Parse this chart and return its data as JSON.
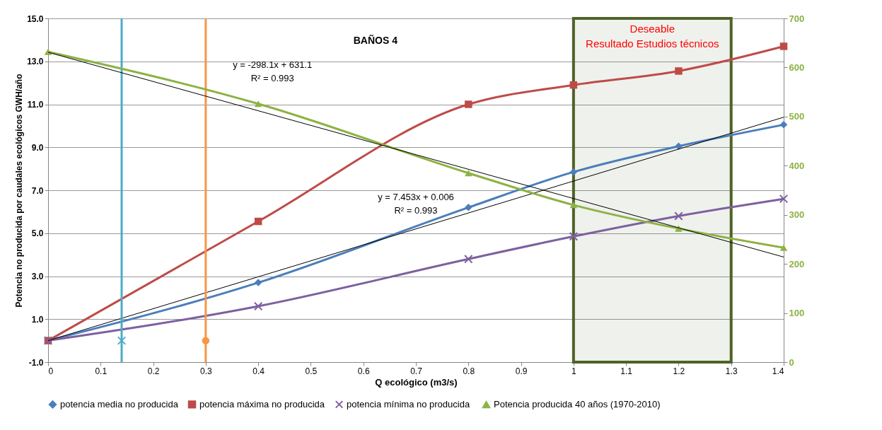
{
  "chart_data": {
    "type": "line",
    "title": "BAÑOS 4",
    "xlabel": "Q ecológico  (m3/s)",
    "ylabel": "Potencia no producida por caudales ecológicos  GWH/año",
    "x": [
      0,
      0.4,
      0.8,
      1,
      1.2,
      1.4
    ],
    "xlim": [
      0,
      1.4
    ],
    "xticks": [
      0,
      0.1,
      0.2,
      0.3,
      0.4,
      0.5,
      0.6,
      0.7,
      0.8,
      0.9,
      1,
      1.1,
      1.2,
      1.3,
      1.4
    ],
    "ylim": [
      -1,
      15
    ],
    "yticks": [
      {
        "value": -1,
        "label": "-1.0"
      },
      {
        "value": 1,
        "label": "1.0"
      },
      {
        "value": 3,
        "label": "3.0"
      },
      {
        "value": 5,
        "label": "5.0"
      },
      {
        "value": 7,
        "label": "7.0"
      },
      {
        "value": 9,
        "label": "9.0"
      },
      {
        "value": 11,
        "label": "11.0"
      },
      {
        "value": 13,
        "label": "13.0"
      },
      {
        "value": 15,
        "label": "15.0"
      }
    ],
    "y2lim": [
      0,
      700
    ],
    "y2ticks": [
      0,
      100,
      200,
      300,
      400,
      500,
      600,
      700
    ],
    "series": [
      {
        "name": "potencia media no producida",
        "color": "#4a7ebb",
        "marker": "diamond",
        "values": [
          0,
          2.7,
          6.2,
          7.85,
          9.05,
          10.05
        ]
      },
      {
        "name": "potencia máxima no producida",
        "color": "#be4b48",
        "marker": "square",
        "values": [
          0,
          5.55,
          11.0,
          11.9,
          12.55,
          13.7
        ]
      },
      {
        "name": "potencia mínima  no producida",
        "color": "#7d60a0",
        "marker": "cross",
        "values": [
          0,
          1.6,
          3.8,
          4.85,
          5.8,
          6.6
        ]
      },
      {
        "name": "Potencia producida 40 años (1970-2010)",
        "color": "#8db243",
        "marker": "triangle",
        "axis": "y2",
        "values": [
          632,
          526,
          385,
          320,
          272,
          233
        ]
      },
      {
        "type": "line",
        "color": "#000000",
        "marker": "none",
        "x": [
          0,
          1.4
        ],
        "values": [
          0.0,
          10.4
        ]
      },
      {
        "type": "line",
        "color": "#000000",
        "marker": "none",
        "axis": "y2",
        "x": [
          0,
          1.4
        ],
        "values": [
          631,
          214
        ]
      },
      {
        "type": "scatter",
        "color": "#4bacc6",
        "marker": "cross",
        "x": [
          0.14
        ],
        "values": [
          0
        ]
      },
      {
        "type": "scatter",
        "color": "#f79646",
        "marker": "circle",
        "x": [
          0.3
        ],
        "values": [
          0
        ]
      }
    ],
    "ref_lines": [
      {
        "axis": "x",
        "value": 0.14,
        "color": "#4bacc6"
      },
      {
        "axis": "x",
        "value": 0.3,
        "color": "#f79646"
      }
    ],
    "bands": [
      {
        "axis": "x",
        "from": 1,
        "to": 1.3,
        "label": "Deseable\nResultado Estudios técnicos",
        "color": "#4f6228"
      }
    ],
    "annotations": [
      "y = -298.1x + 631.1",
      "R² = 0.993",
      "y = 7.453x + 0.006",
      "R² = 0.993"
    ],
    "grid": "y",
    "legend": "bottom",
    "line_style": "solid"
  }
}
